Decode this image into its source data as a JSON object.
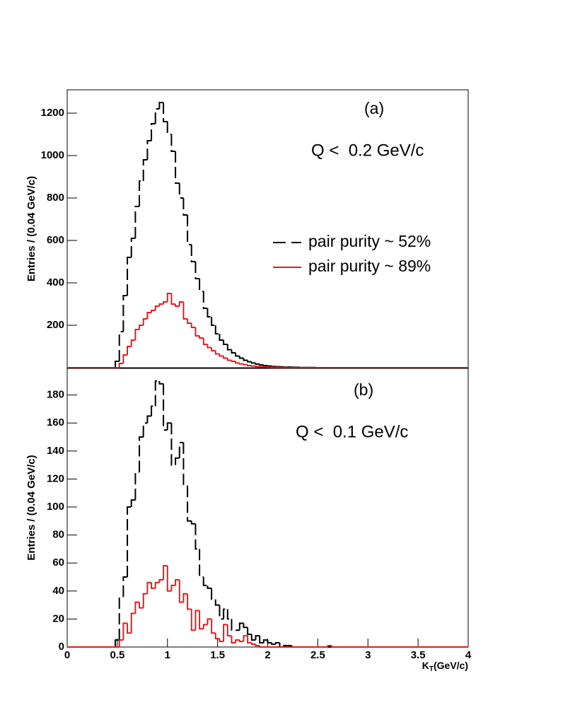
{
  "chart_data": [
    {
      "type": "histogram",
      "ylabel": "Entries / (0.04 GeV/c)",
      "annotations": [
        "(a)",
        "Q <  0.2 GeV/c"
      ],
      "xlim": [
        0,
        4
      ],
      "ylim": [
        0,
        1310
      ],
      "yticks": [
        200,
        400,
        600,
        800,
        1000,
        1200
      ],
      "legend": "right",
      "bins": [
        0,
        0.04,
        0.08,
        0.12,
        0.16,
        0.2,
        0.24,
        0.28,
        0.32,
        0.36,
        0.4,
        0.44,
        0.48,
        0.52,
        0.56,
        0.6,
        0.64,
        0.68,
        0.72,
        0.76,
        0.8,
        0.84,
        0.88,
        0.92,
        0.96,
        1,
        1.04,
        1.08,
        1.12,
        1.16,
        1.2,
        1.24,
        1.28,
        1.32,
        1.36,
        1.4,
        1.44,
        1.48,
        1.52,
        1.56,
        1.6,
        1.64,
        1.68,
        1.72,
        1.76,
        1.8,
        1.84,
        1.88,
        1.92,
        1.96,
        2,
        2.04,
        2.08,
        2.12,
        2.16,
        2.2,
        2.24,
        2.28,
        2.32,
        2.36,
        2.4,
        2.44,
        2.48,
        2.52,
        2.56,
        2.6,
        2.64,
        2.68,
        2.72,
        2.76,
        2.8,
        2.84,
        2.88,
        2.92,
        2.96,
        3,
        3.04,
        3.08,
        3.12,
        3.16,
        3.2,
        3.24,
        3.28,
        3.32,
        3.36,
        3.4,
        3.44,
        3.48,
        3.52,
        3.56,
        3.6,
        3.64,
        3.68,
        3.72,
        3.76,
        3.8,
        3.84,
        3.88,
        3.92,
        3.96,
        4
      ],
      "series": [
        {
          "name": "pair purity ~ 52%",
          "color": "#000000",
          "dashed": true,
          "values": [
            0,
            0,
            0,
            0,
            0,
            0,
            0,
            0,
            0,
            0,
            0,
            0,
            30,
            170,
            340,
            520,
            610,
            760,
            880,
            980,
            1070,
            1150,
            1220,
            1250,
            1160,
            1100,
            1020,
            870,
            800,
            720,
            580,
            500,
            420,
            360,
            280,
            240,
            200,
            160,
            130,
            110,
            85,
            70,
            55,
            45,
            35,
            28,
            22,
            17,
            13,
            10,
            8,
            6,
            5,
            4,
            3,
            3,
            2,
            2,
            1,
            1,
            1,
            1,
            0,
            0,
            0,
            0,
            0,
            0,
            0,
            0,
            0,
            0,
            0,
            0,
            0,
            0,
            0,
            0,
            0,
            0,
            0,
            0,
            0,
            0,
            0,
            0,
            0,
            0,
            0,
            0,
            0,
            0,
            0,
            0,
            0,
            0,
            0,
            0,
            0,
            0
          ]
        },
        {
          "name": "pair purity ~ 89%",
          "color": "#e8191e",
          "dashed": false,
          "values": [
            0,
            0,
            0,
            0,
            0,
            0,
            0,
            0,
            0,
            0,
            0,
            0,
            0,
            20,
            60,
            100,
            130,
            180,
            200,
            230,
            260,
            270,
            290,
            300,
            310,
            350,
            300,
            290,
            310,
            230,
            210,
            190,
            150,
            140,
            110,
            95,
            80,
            65,
            55,
            45,
            35,
            30,
            22,
            18,
            14,
            10,
            8,
            6,
            5,
            4,
            3,
            2,
            2,
            1,
            1,
            0,
            0,
            0,
            0,
            0,
            0,
            0,
            0,
            0,
            0,
            0,
            0,
            0,
            0,
            0,
            0,
            0,
            0,
            0,
            0,
            0,
            0,
            0,
            0,
            0,
            0,
            0,
            0,
            0,
            0,
            0,
            0,
            0,
            0,
            0,
            0,
            0,
            0,
            0,
            0,
            0,
            0,
            0,
            0,
            0
          ]
        }
      ]
    },
    {
      "type": "histogram",
      "ylabel": "Entries / (0.04 GeV/c)",
      "xlabel": {
        "main": "K",
        "sub": "T",
        "rest": "(GeV/c)"
      },
      "annotations": [
        "(b)",
        "Q <  0.1 GeV/c"
      ],
      "xlim": [
        0,
        4
      ],
      "ylim": [
        0,
        199
      ],
      "xticks": [
        0,
        0.5,
        1,
        1.5,
        2,
        2.5,
        3,
        3.5,
        4
      ],
      "yticks": [
        0,
        20,
        40,
        60,
        80,
        100,
        120,
        140,
        160,
        180
      ],
      "bins": [
        0,
        0.04,
        0.08,
        0.12,
        0.16,
        0.2,
        0.24,
        0.28,
        0.32,
        0.36,
        0.4,
        0.44,
        0.48,
        0.52,
        0.56,
        0.6,
        0.64,
        0.68,
        0.72,
        0.76,
        0.8,
        0.84,
        0.88,
        0.92,
        0.96,
        1,
        1.04,
        1.08,
        1.12,
        1.16,
        1.2,
        1.24,
        1.28,
        1.32,
        1.36,
        1.4,
        1.44,
        1.48,
        1.52,
        1.56,
        1.6,
        1.64,
        1.68,
        1.72,
        1.76,
        1.8,
        1.84,
        1.88,
        1.92,
        1.96,
        2,
        2.04,
        2.08,
        2.12,
        2.16,
        2.2,
        2.24,
        2.28,
        2.32,
        2.36,
        2.4,
        2.44,
        2.48,
        2.52,
        2.56,
        2.6,
        2.64,
        2.68,
        2.72,
        2.76,
        2.8,
        2.84,
        2.88,
        2.92,
        2.96,
        3,
        3.04,
        3.08,
        3.12,
        3.16,
        3.2,
        3.24,
        3.28,
        3.32,
        3.36,
        3.4,
        3.44,
        3.48,
        3.52,
        3.56,
        3.6,
        3.64,
        3.68,
        3.72,
        3.76,
        3.8,
        3.84,
        3.88,
        3.92,
        3.96,
        4
      ],
      "series": [
        {
          "color": "#000000",
          "dashed": true,
          "values": [
            0,
            0,
            0,
            0,
            0,
            0,
            0,
            0,
            0,
            0,
            0,
            0,
            5,
            36,
            50,
            100,
            105,
            125,
            150,
            160,
            165,
            172,
            190,
            188,
            155,
            160,
            130,
            135,
            146,
            115,
            90,
            88,
            70,
            50,
            44,
            42,
            34,
            30,
            20,
            27,
            20,
            12,
            12,
            17,
            14,
            9,
            5,
            8,
            3,
            5,
            3,
            2,
            3,
            0,
            1,
            1,
            0,
            0,
            0,
            0,
            0,
            0,
            0,
            0,
            0,
            0,
            0,
            0,
            0,
            0,
            0,
            0,
            0,
            0,
            0,
            0,
            0,
            0,
            0,
            0,
            0,
            0,
            0,
            0,
            0,
            0,
            0,
            0,
            0,
            0,
            0,
            0,
            0,
            0,
            0,
            0,
            0,
            0,
            0,
            0
          ]
        },
        {
          "color": "#e8191e",
          "dashed": false,
          "values": [
            0,
            0,
            0,
            0,
            0,
            0,
            0,
            0,
            0,
            0,
            0,
            0,
            0,
            5,
            17,
            10,
            24,
            32,
            28,
            38,
            46,
            42,
            46,
            48,
            58,
            40,
            44,
            48,
            32,
            38,
            27,
            12,
            26,
            13,
            16,
            20,
            10,
            6,
            4,
            16,
            8,
            3,
            5,
            4,
            8,
            3,
            2,
            1,
            0,
            0,
            0,
            0,
            0,
            0,
            0,
            0,
            0,
            0,
            0,
            0,
            0,
            0,
            0,
            0,
            0,
            1,
            0,
            0,
            0,
            0,
            0,
            0,
            0,
            0,
            0,
            0,
            0,
            0,
            0,
            0,
            0,
            0,
            0,
            0,
            0,
            0,
            0,
            0,
            0,
            0,
            0,
            0,
            0,
            0,
            0,
            0,
            0,
            0,
            0,
            0
          ]
        }
      ]
    }
  ]
}
